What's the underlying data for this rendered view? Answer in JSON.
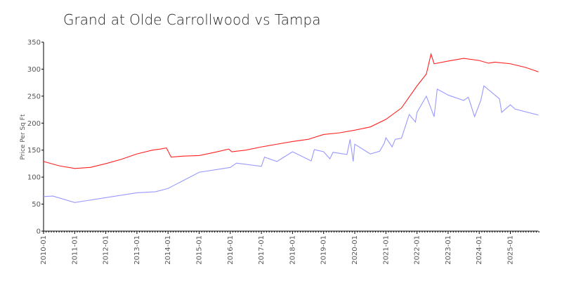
{
  "chart_data": {
    "type": "line",
    "title": "Grand at Olde Carrollwood vs Tampa",
    "xlabel": "",
    "ylabel": "Price Per Sq Ft",
    "ylim": [
      0,
      350
    ],
    "xlim": [
      2010.0,
      2025.9
    ],
    "yticks": [
      "0",
      "50",
      "100",
      "150",
      "200",
      "250",
      "300",
      "350"
    ],
    "xticks": [
      "2010-01",
      "2011-01",
      "2012-01",
      "2013-01",
      "2014-01",
      "2015-01",
      "2016-01",
      "2017-01",
      "2018-01",
      "2019-01",
      "2020-01",
      "2021-01",
      "2022-01",
      "2023-01",
      "2024-01",
      "2025-01"
    ],
    "grid": false,
    "series": [
      {
        "name": "Grand at Olde Carrollwood",
        "color": "#ff2020",
        "x": [
          2010.0,
          2010.5,
          2011.0,
          2011.5,
          2012.0,
          2012.5,
          2013.0,
          2013.5,
          2013.75,
          2013.95,
          2014.1,
          2014.5,
          2015.0,
          2015.5,
          2015.95,
          2016.05,
          2016.5,
          2017.0,
          2017.5,
          2018.0,
          2018.5,
          2019.0,
          2019.5,
          2020.0,
          2020.5,
          2021.0,
          2021.5,
          2022.0,
          2022.3,
          2022.45,
          2022.55,
          2023.0,
          2023.5,
          2024.0,
          2024.3,
          2024.5,
          2025.0,
          2025.5,
          2025.9
        ],
        "y": [
          129,
          121,
          116,
          118,
          125,
          133,
          143,
          150,
          152,
          154,
          137,
          139,
          140,
          146,
          152,
          147,
          150,
          156,
          161,
          166,
          170,
          179,
          182,
          187,
          193,
          207,
          228,
          269,
          291,
          328,
          310,
          315,
          320,
          316,
          311,
          313,
          310,
          303,
          295
        ]
      },
      {
        "name": "Tampa",
        "color": "#9999ff",
        "x": [
          2010.0,
          2010.3,
          2011.0,
          2012.0,
          2013.0,
          2013.6,
          2014.0,
          2015.0,
          2016.0,
          2016.2,
          2017.0,
          2017.1,
          2017.5,
          2018.0,
          2018.6,
          2018.7,
          2019.0,
          2019.2,
          2019.3,
          2019.75,
          2019.85,
          2019.95,
          2020.0,
          2020.5,
          2020.8,
          2020.95,
          2021.0,
          2021.2,
          2021.3,
          2021.5,
          2021.75,
          2021.95,
          2022.0,
          2022.3,
          2022.55,
          2022.65,
          2023.0,
          2023.5,
          2023.65,
          2023.85,
          2024.05,
          2024.15,
          2024.65,
          2024.72,
          2025.0,
          2025.15,
          2025.9
        ],
        "y": [
          64,
          65,
          53,
          62,
          71,
          73,
          79,
          109,
          118,
          126,
          120,
          137,
          129,
          147,
          130,
          151,
          147,
          134,
          146,
          142,
          170,
          129,
          161,
          143,
          148,
          163,
          173,
          156,
          170,
          172,
          216,
          202,
          220,
          250,
          212,
          263,
          252,
          242,
          248,
          212,
          242,
          269,
          245,
          220,
          234,
          226,
          215
        ]
      }
    ]
  }
}
